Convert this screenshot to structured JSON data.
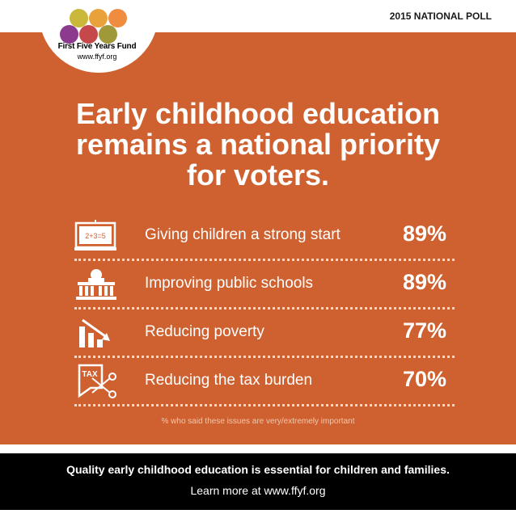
{
  "logo": {
    "name": "First Five Years Fund",
    "url": "www.ffyf.org",
    "dot_colors": [
      "#c9b83a",
      "#e9a23b",
      "#ef8c3f",
      "#8b3a8e",
      "#c7484a",
      "#a0993a"
    ]
  },
  "poll_label": "2015 NATIONAL POLL",
  "headline": [
    "Early childhood education",
    "remains a national priority",
    "for voters."
  ],
  "items": [
    {
      "label": "Giving children a strong start",
      "percent": "89%",
      "icon": "chalkboard-icon",
      "board_text": "2+3=5"
    },
    {
      "label": "Improving public schools",
      "percent": "89%",
      "icon": "school-building-icon"
    },
    {
      "label": "Reducing poverty",
      "percent": "77%",
      "icon": "declining-chart-icon"
    },
    {
      "label": "Reducing the tax burden",
      "percent": "70%",
      "icon": "tax-cut-icon",
      "tax_text": "TAX"
    }
  ],
  "footnote": "% who said these issues are very/extremely important",
  "footer": {
    "line1": "Quality early childhood education is essential for children and families.",
    "line2": "Learn more at www.ffyf.org"
  },
  "colors": {
    "orange": "#cf6130",
    "footer": "#000000"
  }
}
